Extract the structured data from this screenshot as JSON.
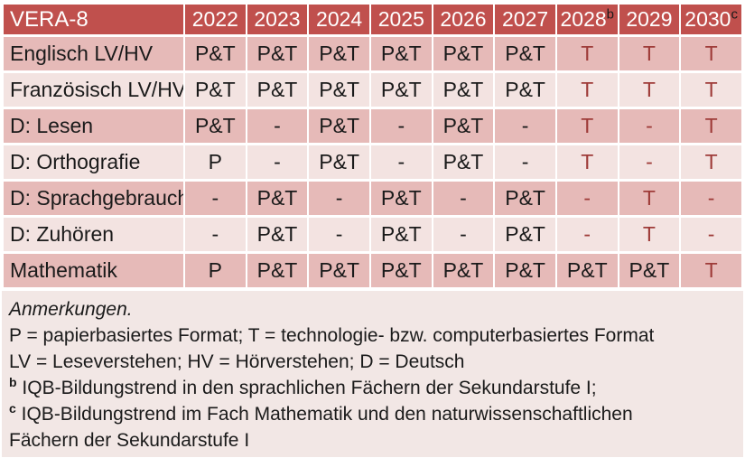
{
  "colors": {
    "header_bg": "#C0504D",
    "header_text": "#FFFFFF",
    "row_dark_bg": "#E6BAB8",
    "row_light_bg": "#F3E3E1",
    "notes_bg": "#F2E7E5",
    "value_black": "#1A1A1A",
    "value_red": "#9E3B38"
  },
  "table": {
    "title": "VERA-8",
    "years": [
      {
        "label": "2022",
        "sup": ""
      },
      {
        "label": "2023",
        "sup": ""
      },
      {
        "label": "2024",
        "sup": ""
      },
      {
        "label": "2025",
        "sup": ""
      },
      {
        "label": "2026",
        "sup": ""
      },
      {
        "label": "2027",
        "sup": ""
      },
      {
        "label": "2028",
        "sup": "b"
      },
      {
        "label": "2029",
        "sup": ""
      },
      {
        "label": "2030",
        "sup": "c"
      }
    ],
    "rows": [
      {
        "label": "Englisch LV/HV",
        "cells": [
          {
            "t": "P&T",
            "red": false
          },
          {
            "t": "P&T",
            "red": false
          },
          {
            "t": "P&T",
            "red": false
          },
          {
            "t": "P&T",
            "red": false
          },
          {
            "t": "P&T",
            "red": false
          },
          {
            "t": "P&T",
            "red": false
          },
          {
            "t": "T",
            "red": true
          },
          {
            "t": "T",
            "red": true
          },
          {
            "t": "T",
            "red": true
          }
        ]
      },
      {
        "label": "Französisch LV/HV",
        "cells": [
          {
            "t": "P&T",
            "red": false
          },
          {
            "t": "P&T",
            "red": false
          },
          {
            "t": "P&T",
            "red": false
          },
          {
            "t": "P&T",
            "red": false
          },
          {
            "t": "P&T",
            "red": false
          },
          {
            "t": "P&T",
            "red": false
          },
          {
            "t": "T",
            "red": true
          },
          {
            "t": "T",
            "red": true
          },
          {
            "t": "T",
            "red": true
          }
        ]
      },
      {
        "label": "D: Lesen",
        "cells": [
          {
            "t": "P&T",
            "red": false
          },
          {
            "t": "-",
            "red": false
          },
          {
            "t": "P&T",
            "red": false
          },
          {
            "t": "-",
            "red": false
          },
          {
            "t": "P&T",
            "red": false
          },
          {
            "t": "-",
            "red": false
          },
          {
            "t": "T",
            "red": true
          },
          {
            "t": "-",
            "red": true
          },
          {
            "t": "T",
            "red": true
          }
        ]
      },
      {
        "label": "D: Orthografie",
        "cells": [
          {
            "t": "P",
            "red": false
          },
          {
            "t": "-",
            "red": false
          },
          {
            "t": "P&T",
            "red": false
          },
          {
            "t": "-",
            "red": false
          },
          {
            "t": "P&T",
            "red": false
          },
          {
            "t": "-",
            "red": false
          },
          {
            "t": "T",
            "red": true
          },
          {
            "t": "-",
            "red": true
          },
          {
            "t": "T",
            "red": true
          }
        ]
      },
      {
        "label": "D: Sprachgebrauch",
        "cells": [
          {
            "t": "-",
            "red": false
          },
          {
            "t": "P&T",
            "red": false
          },
          {
            "t": "-",
            "red": false
          },
          {
            "t": "P&T",
            "red": false
          },
          {
            "t": "-",
            "red": false
          },
          {
            "t": "P&T",
            "red": false
          },
          {
            "t": "-",
            "red": true
          },
          {
            "t": "T",
            "red": true
          },
          {
            "t": "-",
            "red": true
          }
        ]
      },
      {
        "label": "D: Zuhören",
        "cells": [
          {
            "t": "-",
            "red": false
          },
          {
            "t": "P&T",
            "red": false
          },
          {
            "t": "-",
            "red": false
          },
          {
            "t": "P&T",
            "red": false
          },
          {
            "t": "-",
            "red": false
          },
          {
            "t": "P&T",
            "red": false
          },
          {
            "t": "-",
            "red": true
          },
          {
            "t": "T",
            "red": true
          },
          {
            "t": "-",
            "red": true
          }
        ]
      },
      {
        "label": "Mathematik",
        "cells": [
          {
            "t": "P",
            "red": false
          },
          {
            "t": "P&T",
            "red": false
          },
          {
            "t": "P&T",
            "red": false
          },
          {
            "t": "P&T",
            "red": false
          },
          {
            "t": "P&T",
            "red": false
          },
          {
            "t": "P&T",
            "red": false
          },
          {
            "t": "P&T",
            "red": false
          },
          {
            "t": "P&T",
            "red": false
          },
          {
            "t": "T",
            "red": true
          }
        ]
      }
    ]
  },
  "notes": {
    "heading": "Anmerkungen.",
    "line_formats": "P = papierbasiertes Format; T = technologie- bzw. computerbasiertes Format",
    "line_abbrev": "LV = Leseverstehen; HV = Hörverstehen; D = Deutsch",
    "footnote_b": {
      "sup": "b",
      "text": "IQB-Bildungstrend in den sprachlichen Fächern der Sekundarstufe I;"
    },
    "footnote_c": {
      "sup": "c",
      "text": "IQB-Bildungstrend im Fach Mathematik und den naturwissenschaftlichen Fächern der Sekundarstufe I"
    }
  }
}
